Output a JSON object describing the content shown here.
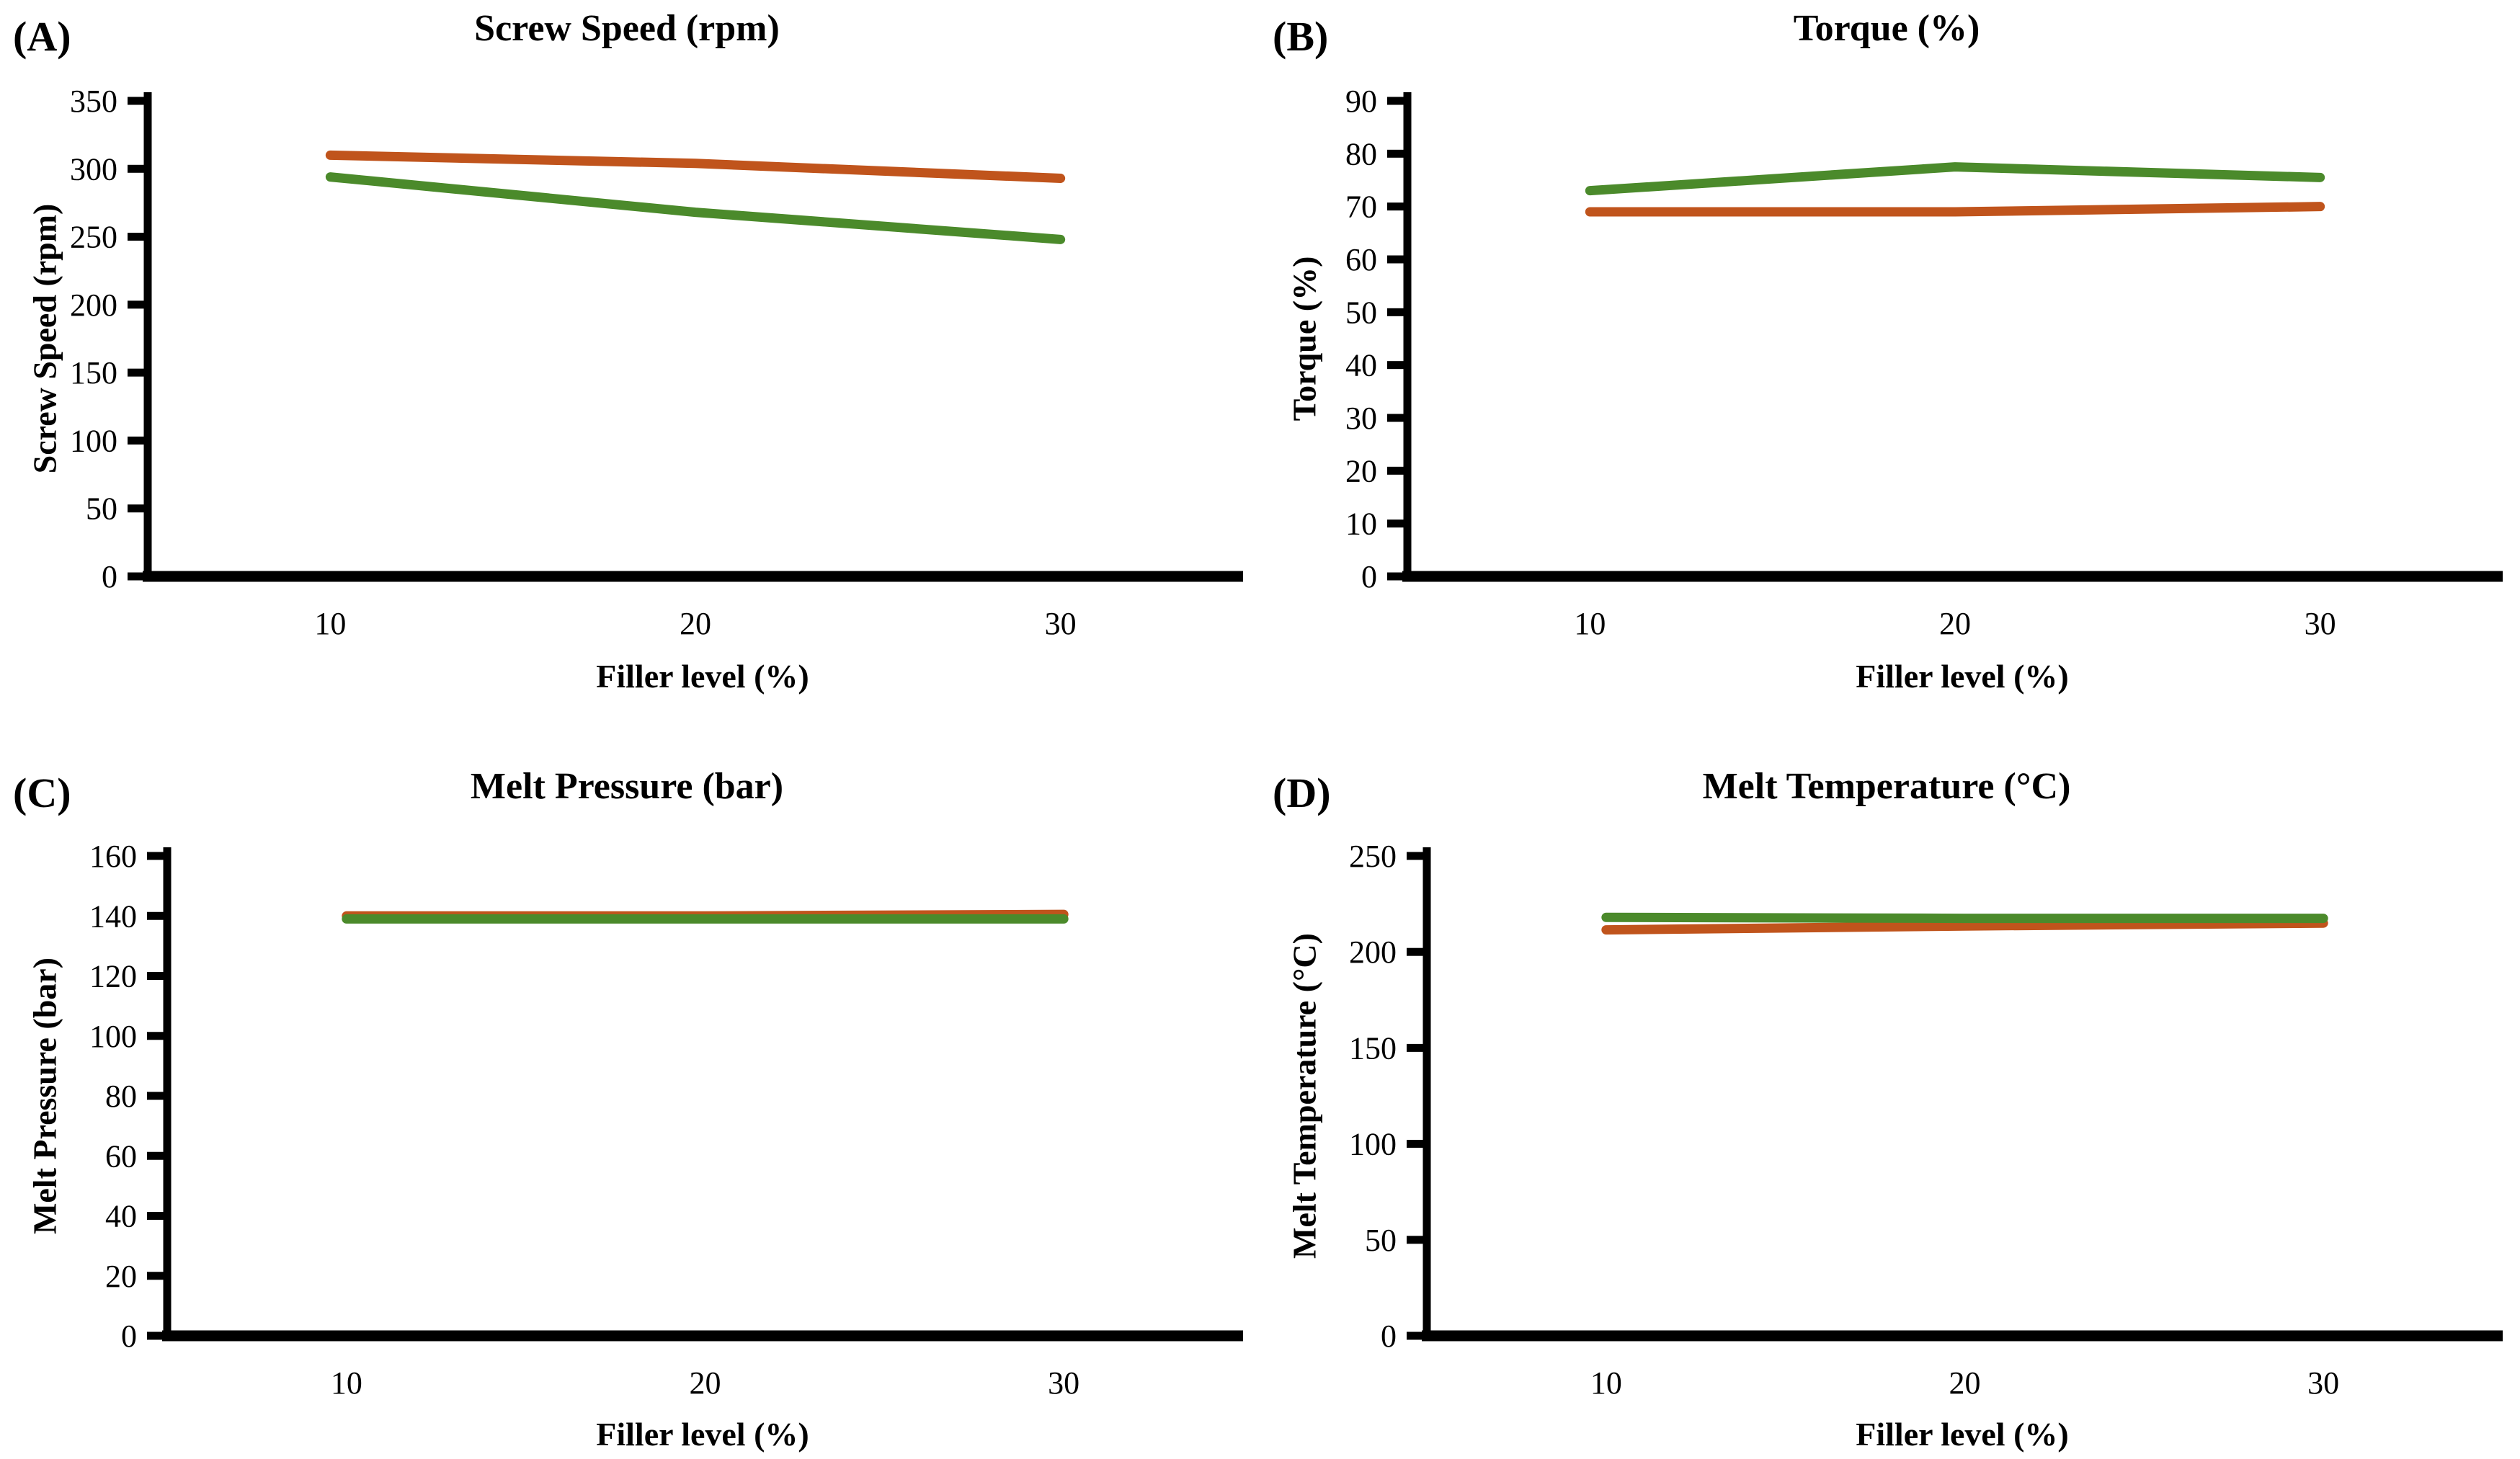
{
  "page": {
    "background": "#ffffff",
    "text_color": "#000000",
    "axis_color": "#000000"
  },
  "colors": {
    "orange_series": "#c0541c",
    "green_series": "#4b8a2b"
  },
  "chart_data": [
    {
      "type": "line",
      "panel_label": "(A)",
      "title": "Screw Speed (rpm)",
      "xlabel": "Filler level (%)",
      "ylabel": "Screw Speed (rpm)",
      "categories": [
        10,
        20,
        30
      ],
      "ylim": [
        0,
        350
      ],
      "ytick_step": 50,
      "grid": false,
      "legend": "none",
      "series": [
        {
          "name": "orange",
          "color": "#c0541c",
          "values": [
            310,
            304,
            293
          ]
        },
        {
          "name": "green",
          "color": "#4b8a2b",
          "values": [
            294,
            268,
            248
          ]
        }
      ]
    },
    {
      "type": "line",
      "panel_label": "(B)",
      "title": "Torque (%)",
      "xlabel": "Filler level (%)",
      "ylabel": "Torque (%)",
      "categories": [
        10,
        20,
        30
      ],
      "ylim": [
        0,
        90
      ],
      "ytick_step": 10,
      "grid": false,
      "legend": "none",
      "series": [
        {
          "name": "orange",
          "color": "#c0541c",
          "values": [
            69,
            69,
            70
          ]
        },
        {
          "name": "green",
          "color": "#4b8a2b",
          "values": [
            73,
            77.5,
            75.5
          ]
        }
      ]
    },
    {
      "type": "line",
      "panel_label": "(C)",
      "title": "Melt Pressure (bar)",
      "xlabel": "Filler level (%)",
      "ylabel": "Melt Pressure (bar)",
      "categories": [
        10,
        20,
        30
      ],
      "ylim": [
        0,
        160
      ],
      "ytick_step": 20,
      "grid": false,
      "legend": "none",
      "series": [
        {
          "name": "orange",
          "color": "#c0541c",
          "values": [
            140,
            140,
            140.5
          ]
        },
        {
          "name": "green",
          "color": "#4b8a2b",
          "values": [
            139,
            139,
            139
          ]
        }
      ]
    },
    {
      "type": "line",
      "panel_label": "(D)",
      "title": "Melt Temperature (°C)",
      "xlabel": "Filler level (%)",
      "ylabel": "Melt Temperature (°C)",
      "categories": [
        10,
        20,
        30
      ],
      "ylim": [
        0,
        250
      ],
      "ytick_step": 50,
      "grid": false,
      "legend": "none",
      "series": [
        {
          "name": "orange",
          "color": "#c0541c",
          "values": [
            211.5,
            213.5,
            215
          ]
        },
        {
          "name": "green",
          "color": "#4b8a2b",
          "values": [
            218,
            217.5,
            217.5
          ]
        }
      ]
    }
  ]
}
